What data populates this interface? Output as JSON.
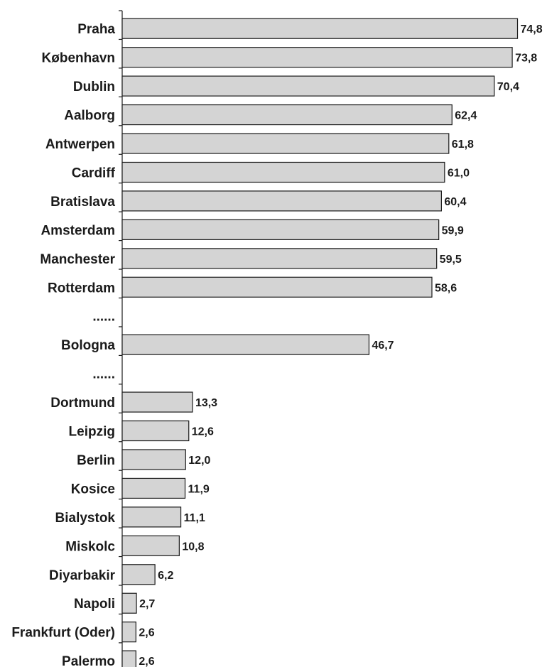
{
  "chart_data": {
    "type": "bar",
    "orientation": "horizontal",
    "categories": [
      "Praha",
      "København",
      "Dublin",
      "Aalborg",
      "Antwerpen",
      "Cardiff",
      "Bratislava",
      "Amsterdam",
      "Manchester",
      "Rotterdam",
      "......",
      "Bologna",
      "......",
      "Dortmund",
      "Leipzig",
      "Berlin",
      "Kosice",
      "Bialystok",
      "Miskolc",
      "Diyarbakir",
      "Napoli",
      "Frankfurt (Oder)",
      "Palermo"
    ],
    "values": [
      74.8,
      73.8,
      70.4,
      62.4,
      61.8,
      61.0,
      60.4,
      59.9,
      59.5,
      58.6,
      null,
      46.7,
      null,
      13.3,
      12.6,
      12.0,
      11.9,
      11.1,
      10.8,
      6.2,
      2.7,
      2.6,
      2.6
    ],
    "value_labels": [
      "74,8",
      "73,8",
      "70,4",
      "62,4",
      "61,8",
      "61,0",
      "60,4",
      "59,9",
      "59,5",
      "58,6",
      "",
      "46,7",
      "",
      "13,3",
      "12,6",
      "12,0",
      "11,9",
      "11,1",
      "10,8",
      "6,2",
      "2,7",
      "2,6",
      "2,6"
    ],
    "xlim": [
      0,
      75
    ],
    "grid": false,
    "bar_color": "#d4d4d4",
    "edge_color": "#1a1a1a"
  }
}
